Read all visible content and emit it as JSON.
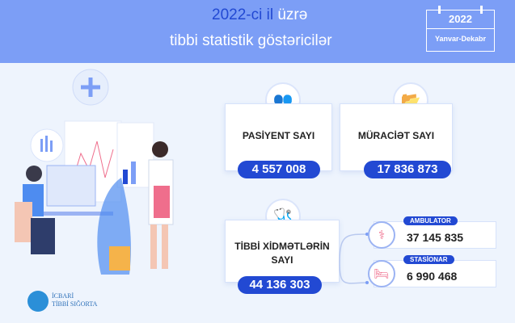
{
  "header": {
    "title_highlight": "2022-ci il",
    "title_rest": " üzrə",
    "subtitle": "tibbi statistik göstəricilər",
    "date_year": "2022",
    "date_range": "Yanvar-Dekabr"
  },
  "colors": {
    "header_bg": "#7c9ef6",
    "accent": "#2249d3",
    "icon": "#ef6e8c",
    "background": "#eef4fd"
  },
  "cards": {
    "patients": {
      "label": "PASİYENT SAYI",
      "value": "4 557 008",
      "icon": "patients-icon"
    },
    "appeals": {
      "label": "MÜRACİƏT SAYI",
      "value": "17 836 873",
      "icon": "folder-icon"
    },
    "services": {
      "label": "TİBBİ XİDMƏTLƏRİN SAYI",
      "value": "44 136 303",
      "icon": "stethoscope-icon",
      "breakdown": [
        {
          "label": "AMBULATOR",
          "value": "37 145 835",
          "icon": "doctor-icon"
        },
        {
          "label": "STASİONAR",
          "value": "6 990 468",
          "icon": "hospital-bed-icon"
        }
      ]
    }
  },
  "logo": {
    "line1": "İCBARİ",
    "line2": "TİBBİ SIĞORTA"
  }
}
